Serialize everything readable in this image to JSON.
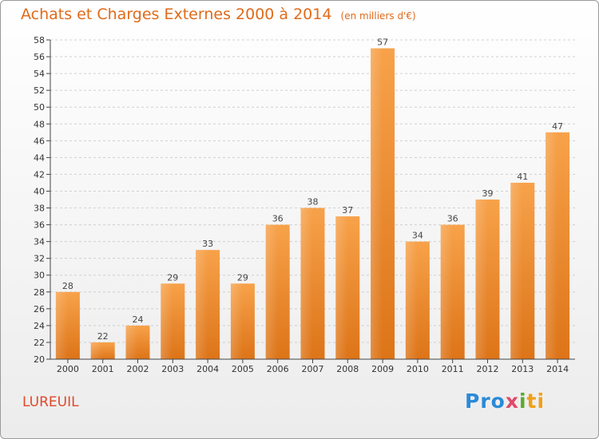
{
  "header": {
    "title": "Achats et Charges Externes 2000 à 2014",
    "subtitle": "(en milliers d'€)"
  },
  "place": "LUREUIL",
  "logo_text": [
    "Pro",
    "x",
    "i",
    "ti"
  ],
  "colors": {
    "accent": "#e06a1a",
    "bar_top": "#f7a24a",
    "bar_bottom": "#dd7418",
    "place": "#e0482a"
  },
  "chart_data": {
    "type": "bar",
    "title": "Achats et Charges Externes 2000 à 2014",
    "subtitle": "(en milliers d'€)",
    "categories": [
      "2000",
      "2001",
      "2002",
      "2003",
      "2004",
      "2005",
      "2006",
      "2007",
      "2008",
      "2009",
      "2010",
      "2011",
      "2012",
      "2013",
      "2014"
    ],
    "values": [
      28,
      22,
      24,
      29,
      33,
      29,
      36,
      38,
      37,
      57,
      34,
      36,
      39,
      41,
      47
    ],
    "ylim": [
      20,
      58
    ],
    "yticks": [
      20,
      22,
      24,
      26,
      28,
      30,
      32,
      34,
      36,
      38,
      40,
      42,
      44,
      46,
      48,
      50,
      52,
      54,
      56,
      58
    ],
    "grid": true,
    "xlabel": "",
    "ylabel": ""
  }
}
